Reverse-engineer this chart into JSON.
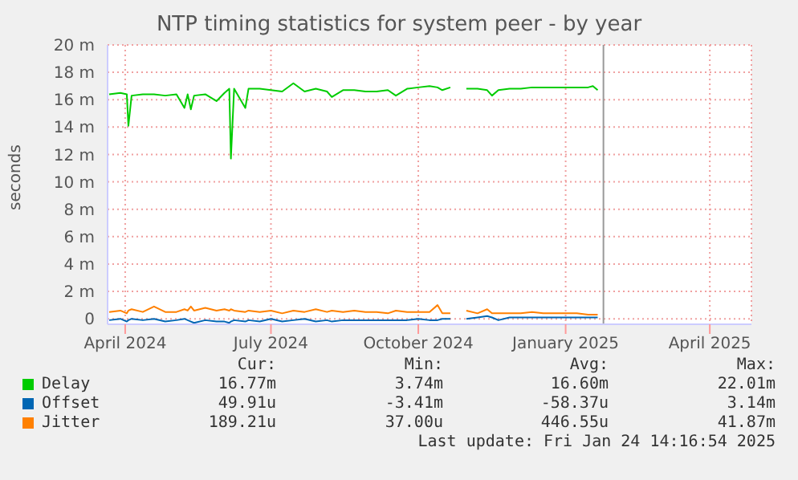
{
  "chart_data": {
    "type": "line",
    "title": "NTP timing statistics for system peer - by year",
    "ylabel": "seconds",
    "x": [
      "2024-03-22",
      "2024-03-29",
      "2024-04-02",
      "2024-04-03",
      "2024-04-05",
      "2024-04-12",
      "2024-04-19",
      "2024-04-26",
      "2024-05-03",
      "2024-05-08",
      "2024-05-10",
      "2024-05-12",
      "2024-05-14",
      "2024-05-21",
      "2024-05-28",
      "2024-06-02",
      "2024-06-05",
      "2024-06-06",
      "2024-06-08",
      "2024-06-15",
      "2024-06-17",
      "2024-06-24",
      "2024-07-01",
      "2024-07-08",
      "2024-07-15",
      "2024-07-22",
      "2024-07-29",
      "2024-08-05",
      "2024-08-08",
      "2024-08-15",
      "2024-08-22",
      "2024-08-29",
      "2024-09-05",
      "2024-09-12",
      "2024-09-17",
      "2024-09-24",
      "2024-10-01",
      "2024-10-08",
      "2024-10-13",
      "2024-10-16",
      "2024-10-21",
      "2024-10-26",
      "2024-10-31",
      "2024-11-07",
      "2024-11-13",
      "2024-11-16",
      "2024-11-20",
      "2024-11-27",
      "2024-12-04",
      "2024-12-11",
      "2024-12-18",
      "2024-12-25",
      "2025-01-01",
      "2025-01-08",
      "2025-01-15",
      "2025-01-18",
      "2025-01-21"
    ],
    "series": [
      {
        "name": "Delay",
        "color": "#00cc00",
        "values": [
          16.4,
          16.5,
          16.4,
          14.1,
          16.3,
          16.4,
          16.4,
          16.3,
          16.4,
          15.4,
          16.4,
          15.3,
          16.3,
          16.4,
          15.9,
          16.5,
          16.8,
          11.7,
          16.8,
          15.4,
          16.8,
          16.8,
          16.7,
          16.6,
          17.2,
          16.6,
          16.8,
          16.6,
          16.2,
          16.7,
          16.7,
          16.6,
          16.6,
          16.7,
          16.3,
          16.8,
          16.9,
          17.0,
          16.9,
          16.7,
          16.9,
          null,
          16.8,
          16.8,
          16.7,
          16.3,
          16.7,
          16.8,
          16.8,
          16.9,
          16.9,
          16.9,
          16.9,
          16.9,
          16.9,
          17.0,
          16.7
        ]
      },
      {
        "name": "Offset",
        "color": "#0066b3",
        "values": [
          -0.1,
          0,
          -0.2,
          -0.1,
          0,
          -0.1,
          0,
          -0.2,
          -0.1,
          0,
          -0.1,
          -0.2,
          -0.3,
          -0.1,
          -0.2,
          -0.2,
          -0.3,
          -0.2,
          -0.1,
          -0.2,
          -0.1,
          -0.2,
          0,
          -0.2,
          -0.1,
          0,
          -0.2,
          -0.1,
          -0.2,
          -0.1,
          -0.1,
          -0.1,
          -0.1,
          -0.1,
          -0.1,
          -0.1,
          0,
          -0.1,
          -0.1,
          0,
          0,
          null,
          0,
          0.1,
          0.2,
          0.1,
          -0.1,
          0.1,
          0.1,
          0.1,
          0.1,
          0.1,
          0.1,
          0.1,
          0.1,
          0.1,
          0.1
        ]
      },
      {
        "name": "Jitter",
        "color": "#ff8000",
        "values": [
          0.5,
          0.6,
          0.4,
          0.6,
          0.7,
          0.5,
          0.9,
          0.5,
          0.5,
          0.7,
          0.6,
          0.9,
          0.6,
          0.8,
          0.6,
          0.7,
          0.6,
          0.7,
          0.6,
          0.5,
          0.6,
          0.5,
          0.6,
          0.4,
          0.6,
          0.5,
          0.7,
          0.5,
          0.6,
          0.5,
          0.6,
          0.5,
          0.5,
          0.4,
          0.6,
          0.5,
          0.5,
          0.5,
          1.0,
          0.4,
          0.4,
          null,
          0.6,
          0.4,
          0.7,
          0.4,
          0.4,
          0.4,
          0.4,
          0.5,
          0.4,
          0.4,
          0.4,
          0.4,
          0.3,
          0.3,
          0.3
        ]
      }
    ],
    "xlim": [
      "2024-03-21",
      "2025-04-27"
    ],
    "xticks": [
      {
        "value": "2024-04-01",
        "label": "April 2024"
      },
      {
        "value": "2024-07-01",
        "label": "July 2024"
      },
      {
        "value": "2024-10-01",
        "label": "October 2024"
      },
      {
        "value": "2025-01-01",
        "label": "January 2025"
      },
      {
        "value": "2025-04-01",
        "label": "April 2025"
      }
    ],
    "ylim": [
      -0.4,
      20
    ],
    "yticks": [
      0,
      {
        "value": 2,
        "label": "2 m"
      },
      {
        "value": 4,
        "label": "4 m"
      },
      {
        "value": 6,
        "label": "6 m"
      },
      {
        "value": 8,
        "label": "8 m"
      },
      {
        "value": 10,
        "label": "10 m"
      },
      {
        "value": 12,
        "label": "12 m"
      },
      {
        "value": 14,
        "label": "14 m"
      },
      {
        "value": 16,
        "label": "16 m"
      },
      {
        "value": 18,
        "label": "18 m"
      },
      {
        "value": 20,
        "label": "20 m"
      }
    ],
    "ref_lines": [
      {
        "axis": "x",
        "value": "2025-01-24T14:16",
        "color": "#999999"
      }
    ],
    "grid": true,
    "legend": "bottom",
    "marker": "none",
    "line_style": "solid",
    "annotations": [
      "Cur:",
      "Min:",
      "Avg:",
      "Max:",
      "16.77m",
      "3.74m",
      "16.60m",
      "22.01m",
      "49.91u",
      "-3.41m",
      "-58.37u",
      "3.14m",
      "189.21u",
      "37.00u",
      "446.55u",
      "41.87m",
      "Last update: Fri Jan 24 14:16:54 2025"
    ]
  }
}
